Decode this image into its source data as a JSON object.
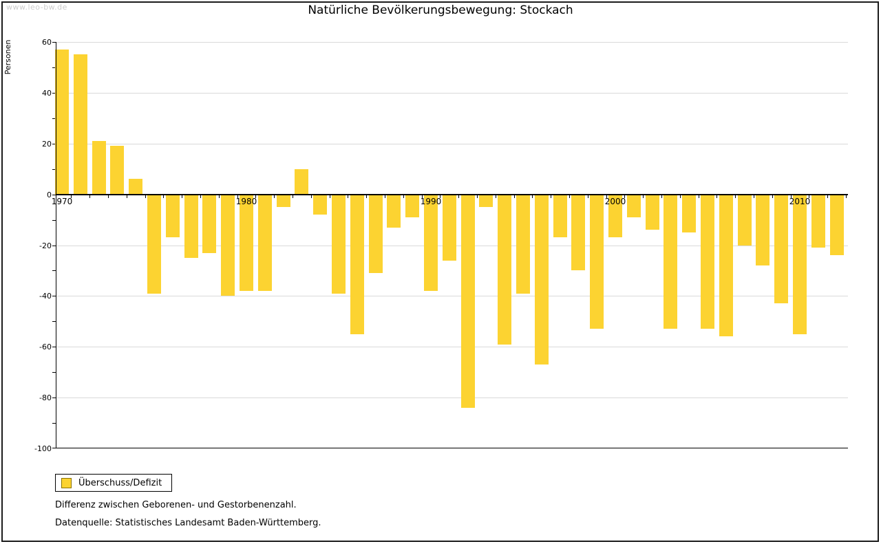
{
  "watermark": "www.leo-bw.de",
  "title": "Natürliche Bevölkerungsbewegung: Stockach",
  "y_axis": {
    "label": "Personen",
    "max": 60,
    "min": -100,
    "major_step": 20,
    "minor_step": 10
  },
  "x_axis": {
    "tick_years": [
      1970,
      1980,
      1990,
      2000,
      2010
    ]
  },
  "legend": {
    "label": "Überschuss/Defizit"
  },
  "notes": [
    "Differenz zwischen Geborenen- und Gestorbenenzahl.",
    "Datenquelle: Statistisches Landesamt Baden-Württemberg."
  ],
  "colors": {
    "bar": "#fcd331",
    "bar_border": "#8a7100",
    "grid": "#d9d9d9",
    "axis": "#000000",
    "watermark": "#cccccc"
  },
  "chart_data": {
    "type": "bar",
    "title": "Natürliche Bevölkerungsbewegung: Stockach",
    "xlabel": "",
    "ylabel": "Personen",
    "ylim": [
      -100,
      60
    ],
    "grid": "horizontal",
    "legend_position": "bottom-left",
    "categories": [
      1970,
      1971,
      1972,
      1973,
      1974,
      1975,
      1976,
      1977,
      1978,
      1979,
      1980,
      1981,
      1982,
      1983,
      1984,
      1985,
      1986,
      1987,
      1988,
      1989,
      1990,
      1991,
      1992,
      1993,
      1994,
      1995,
      1996,
      1997,
      1998,
      1999,
      2000,
      2001,
      2002,
      2003,
      2004,
      2005,
      2006,
      2007,
      2008,
      2009,
      2010,
      2011,
      2012
    ],
    "series": [
      {
        "name": "Überschuss/Defizit",
        "values": [
          57,
          55,
          21,
          19,
          6,
          -39,
          -17,
          -25,
          -23,
          -40,
          -38,
          -38,
          -5,
          10,
          -8,
          -39,
          -55,
          -31,
          -13,
          -9,
          -38,
          -26,
          -84,
          -5,
          -59,
          -39,
          -67,
          -17,
          -30,
          -53,
          -17,
          -9,
          -14,
          -53,
          -15,
          -53,
          -56,
          -20,
          -28,
          -43,
          -55,
          -21,
          -24
        ]
      }
    ]
  }
}
